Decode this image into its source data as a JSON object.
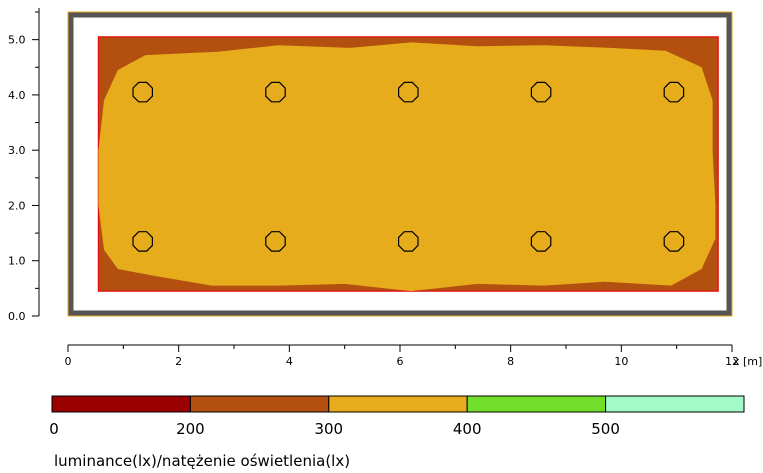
{
  "chart_data": {
    "type": "heatmap",
    "xlabel": "x [m]",
    "xlim": [
      0,
      12
    ],
    "ylim": [
      0,
      5.5
    ],
    "x_ticks": [
      "0",
      "2",
      "4",
      "6",
      "8",
      "10",
      "12"
    ],
    "y_ticks": [
      "0.0",
      "1.0",
      "2.0",
      "3.0",
      "4.0",
      "5.0"
    ],
    "room": {
      "x": [
        0.0,
        12.0
      ],
      "y": [
        0.0,
        5.5
      ]
    },
    "calc_area": {
      "x": [
        0.55,
        11.75
      ],
      "y": [
        0.45,
        5.05
      ]
    },
    "contour_300": [
      [
        0.55,
        3.0
      ],
      [
        0.65,
        3.9
      ],
      [
        0.9,
        4.45
      ],
      [
        1.4,
        4.72
      ],
      [
        2.7,
        4.78
      ],
      [
        3.8,
        4.9
      ],
      [
        5.1,
        4.85
      ],
      [
        6.2,
        4.95
      ],
      [
        7.4,
        4.88
      ],
      [
        8.6,
        4.9
      ],
      [
        9.8,
        4.85
      ],
      [
        10.8,
        4.8
      ],
      [
        11.45,
        4.5
      ],
      [
        11.65,
        3.9
      ],
      [
        11.65,
        3.0
      ],
      [
        11.7,
        2.0
      ],
      [
        11.7,
        1.4
      ],
      [
        11.45,
        0.85
      ],
      [
        10.9,
        0.55
      ],
      [
        9.7,
        0.62
      ],
      [
        8.6,
        0.55
      ],
      [
        7.4,
        0.58
      ],
      [
        6.2,
        0.45
      ],
      [
        5.0,
        0.58
      ],
      [
        3.8,
        0.55
      ],
      [
        2.6,
        0.55
      ],
      [
        1.6,
        0.72
      ],
      [
        0.9,
        0.85
      ],
      [
        0.65,
        1.2
      ],
      [
        0.55,
        2.0
      ]
    ],
    "luminaires": [
      {
        "x": 1.35,
        "y": 4.05
      },
      {
        "x": 3.75,
        "y": 4.05
      },
      {
        "x": 6.15,
        "y": 4.05
      },
      {
        "x": 8.55,
        "y": 4.05
      },
      {
        "x": 10.95,
        "y": 4.05
      },
      {
        "x": 1.35,
        "y": 1.35
      },
      {
        "x": 3.75,
        "y": 1.35
      },
      {
        "x": 6.15,
        "y": 1.35
      },
      {
        "x": 8.55,
        "y": 1.35
      },
      {
        "x": 10.95,
        "y": 1.35
      }
    ],
    "legend": {
      "bins": [
        {
          "from": 0,
          "to": 200,
          "color": "#9b0000"
        },
        {
          "from": 200,
          "to": 300,
          "color": "#b3500f"
        },
        {
          "from": 300,
          "to": 400,
          "color": "#e6ac1c"
        },
        {
          "from": 400,
          "to": 500,
          "color": "#72e02a"
        },
        {
          "from": 500,
          "to": null,
          "color": "#a2fbc6"
        }
      ],
      "labels": [
        "0",
        "200",
        "300",
        "400",
        "500"
      ]
    },
    "caption": "luminance(lx)/natężenie oświetlenia(lx)"
  }
}
